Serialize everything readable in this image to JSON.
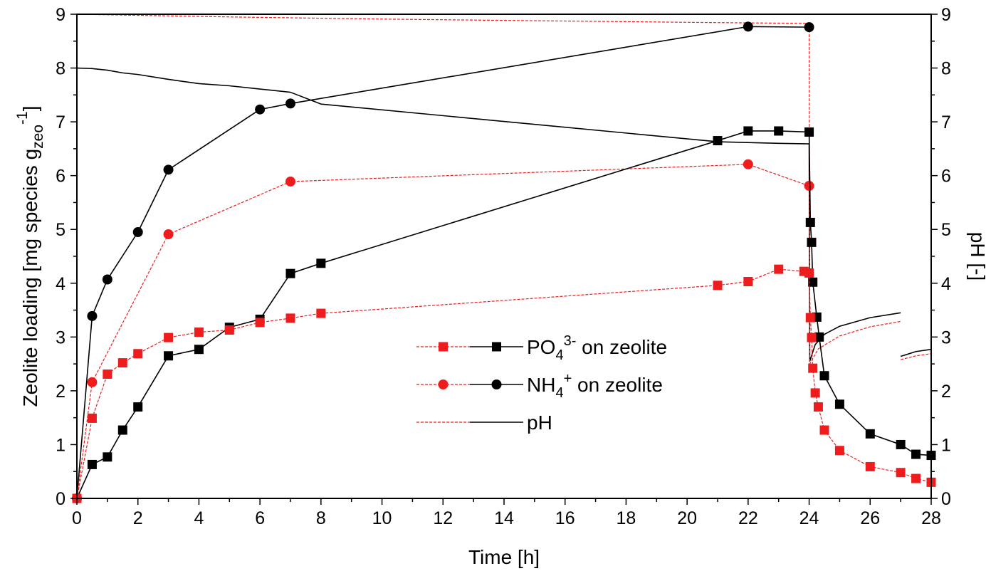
{
  "chart_data": {
    "type": "line",
    "xlabel": "Time [h]",
    "ylabel_left": {
      "main": "Zeolite loading [mg species g",
      "sub": "zeo",
      "sup": "-1",
      "close": "]"
    },
    "ylabel_right": "pH [-]",
    "xlim": [
      0,
      28
    ],
    "ylim_left": [
      0,
      9
    ],
    "ylim_right": [
      0,
      9
    ],
    "x_ticks": [
      "0",
      "2",
      "4",
      "6",
      "8",
      "10",
      "12",
      "14",
      "16",
      "18",
      "20",
      "22",
      "24",
      "26",
      "28"
    ],
    "y_ticks": [
      "0",
      "1",
      "2",
      "3",
      "4",
      "5",
      "6",
      "7",
      "8",
      "9"
    ],
    "grid": false,
    "legend_position": "center-right",
    "legend": [
      {
        "key": "po4",
        "label_main": "PO",
        "label_sub": "4",
        "label_sup": "3-",
        "label_rest": " on zeolite"
      },
      {
        "key": "nh4",
        "label_main": "NH",
        "label_sub": "4",
        "label_sup": "+",
        "label_rest": " on zeolite"
      },
      {
        "key": "ph",
        "label_main": "pH",
        "label_sub": "",
        "label_sup": "",
        "label_rest": ""
      }
    ],
    "colors": {
      "black": "#000000",
      "red": "#ee1c1c"
    },
    "series": [
      {
        "name": "PO4 on zeolite (black)",
        "group": "po4",
        "color": "#000000",
        "style": "solid",
        "marker": "square",
        "points": [
          [
            0,
            0
          ],
          [
            0.5,
            0.63
          ],
          [
            1,
            0.77
          ],
          [
            1.5,
            1.27
          ],
          [
            2,
            1.7
          ],
          [
            3,
            2.65
          ],
          [
            4,
            2.77
          ],
          [
            5,
            3.18
          ],
          [
            6,
            3.33
          ],
          [
            7,
            4.18
          ],
          [
            8,
            4.37
          ],
          [
            21,
            6.65
          ],
          [
            22,
            6.83
          ],
          [
            23,
            6.83
          ],
          [
            24,
            6.81
          ],
          [
            24.04,
            5.13
          ],
          [
            24.08,
            4.76
          ],
          [
            24.12,
            4.02
          ],
          [
            24.25,
            3.37
          ],
          [
            24.33,
            3.0
          ],
          [
            24.5,
            2.28
          ],
          [
            25,
            1.75
          ],
          [
            26,
            1.2
          ],
          [
            27,
            1.0
          ],
          [
            27.5,
            0.82
          ],
          [
            28,
            0.8
          ]
        ]
      },
      {
        "name": "PO4 on zeolite (red)",
        "group": "po4",
        "color": "#ee1c1c",
        "style": "dashed",
        "marker": "square",
        "points": [
          [
            0,
            0
          ],
          [
            0.5,
            1.49
          ],
          [
            1,
            2.31
          ],
          [
            1.5,
            2.52
          ],
          [
            2,
            2.69
          ],
          [
            3,
            2.99
          ],
          [
            4,
            3.09
          ],
          [
            5,
            3.13
          ],
          [
            6,
            3.27
          ],
          [
            7,
            3.35
          ],
          [
            8,
            3.44
          ],
          [
            21,
            3.96
          ],
          [
            22,
            4.03
          ],
          [
            23,
            4.26
          ],
          [
            23.83,
            4.22
          ],
          [
            24,
            4.19
          ],
          [
            24.04,
            3.36
          ],
          [
            24.08,
            2.99
          ],
          [
            24.12,
            2.42
          ],
          [
            24.2,
            1.96
          ],
          [
            24.3,
            1.7
          ],
          [
            24.5,
            1.27
          ],
          [
            25,
            0.89
          ],
          [
            26,
            0.59
          ],
          [
            27,
            0.48
          ],
          [
            27.5,
            0.37
          ],
          [
            28,
            0.3
          ]
        ]
      },
      {
        "name": "NH4 on zeolite (black)",
        "group": "nh4",
        "color": "#000000",
        "style": "solid",
        "marker": "circle",
        "points": [
          [
            0,
            0
          ],
          [
            0.5,
            3.39
          ],
          [
            1,
            4.07
          ],
          [
            2,
            4.95
          ],
          [
            3,
            6.11
          ],
          [
            6,
            7.23
          ],
          [
            7,
            7.34
          ],
          [
            22,
            8.77
          ],
          [
            24,
            8.76
          ]
        ]
      },
      {
        "name": "NH4 on zeolite (red)",
        "group": "nh4",
        "color": "#ee1c1c",
        "style": "dashed",
        "marker": "circle",
        "points": [
          [
            0,
            0
          ],
          [
            0.5,
            2.16
          ],
          [
            3,
            4.91
          ],
          [
            7,
            5.89
          ],
          [
            22,
            6.21
          ],
          [
            24,
            5.81
          ]
        ]
      },
      {
        "name": "pH (black)",
        "group": "ph",
        "color": "#000000",
        "style": "solid",
        "marker": "none",
        "segments": [
          [
            [
              0,
              8.0
            ],
            [
              0.5,
              7.99
            ],
            [
              1,
              7.96
            ],
            [
              1.5,
              7.91
            ],
            [
              2,
              7.88
            ],
            [
              3,
              7.79
            ],
            [
              4,
              7.71
            ],
            [
              5,
              7.67
            ],
            [
              6,
              7.61
            ],
            [
              7,
              7.55
            ],
            [
              8,
              7.33
            ],
            [
              21,
              6.63
            ],
            [
              23,
              6.6
            ],
            [
              24,
              6.59
            ],
            [
              24.02,
              2.55
            ],
            [
              24.2,
              2.86
            ],
            [
              24.5,
              3.05
            ],
            [
              25,
              3.2
            ],
            [
              26,
              3.36
            ],
            [
              27,
              3.45
            ]
          ],
          [
            [
              27,
              2.64
            ],
            [
              27.5,
              2.73
            ],
            [
              28,
              2.77
            ]
          ]
        ]
      },
      {
        "name": "pH (red)",
        "group": "ph",
        "color": "#ee1c1c",
        "style": "dashed",
        "marker": "none",
        "segments": [
          [
            [
              0,
              9.0
            ],
            [
              5,
              8.95
            ],
            [
              10,
              8.91
            ],
            [
              15,
              8.88
            ],
            [
              20,
              8.85
            ],
            [
              24,
              8.83
            ],
            [
              24.02,
              2.5
            ],
            [
              24.3,
              2.78
            ],
            [
              25,
              3.02
            ],
            [
              26,
              3.19
            ],
            [
              27,
              3.29
            ]
          ],
          [
            [
              27,
              2.58
            ],
            [
              27.5,
              2.65
            ],
            [
              28,
              2.69
            ]
          ]
        ]
      }
    ]
  }
}
